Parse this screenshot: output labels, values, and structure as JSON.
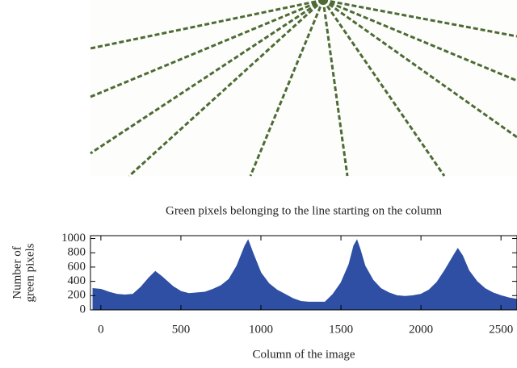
{
  "chart_data": {
    "type": "area",
    "title": "Green pixels belonging to the line starting on the column",
    "xlabel": "Column of the image",
    "ylabel": [
      "Number of",
      "green pixels"
    ],
    "x": [
      -50,
      0,
      50,
      100,
      150,
      200,
      250,
      300,
      340,
      380,
      450,
      500,
      550,
      600,
      650,
      700,
      750,
      800,
      850,
      900,
      920,
      950,
      1000,
      1050,
      1100,
      1150,
      1200,
      1250,
      1300,
      1350,
      1400,
      1450,
      1500,
      1550,
      1580,
      1600,
      1620,
      1650,
      1700,
      1750,
      1800,
      1850,
      1900,
      1950,
      2000,
      2050,
      2100,
      2150,
      2200,
      2230,
      2260,
      2300,
      2350,
      2400,
      2450,
      2500,
      2550,
      2600
    ],
    "values": [
      300,
      290,
      250,
      220,
      210,
      220,
      320,
      450,
      540,
      470,
      330,
      260,
      230,
      240,
      250,
      290,
      340,
      430,
      620,
      900,
      980,
      800,
      520,
      370,
      280,
      220,
      160,
      120,
      110,
      110,
      110,
      220,
      380,
      640,
      900,
      980,
      850,
      620,
      420,
      300,
      240,
      200,
      190,
      200,
      220,
      280,
      390,
      560,
      750,
      860,
      760,
      550,
      400,
      300,
      240,
      200,
      170,
      150
    ],
    "color": "#2e4fa3",
    "xlim": [
      -65,
      2600
    ],
    "ylim": [
      0,
      1040
    ],
    "xticks": [
      0,
      500,
      1000,
      1500,
      2000,
      2500
    ],
    "yticks": [
      0,
      200,
      400,
      600,
      800,
      1000
    ]
  }
}
